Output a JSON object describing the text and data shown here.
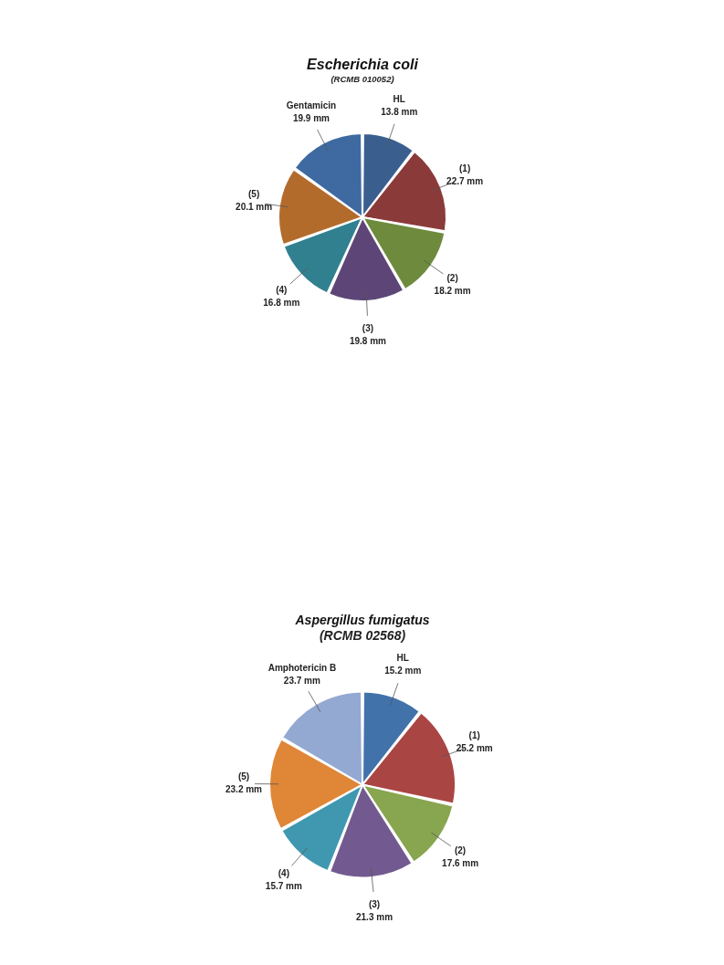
{
  "chart_data": [
    {
      "type": "pie",
      "title": "Escherichia coli",
      "subtitle": "(RCMB 010052)",
      "categories": [
        "HL",
        "(1)",
        "(2)",
        "(3)",
        "(4)",
        "(5)",
        "Gentamicin"
      ],
      "values": [
        13.8,
        22.7,
        18.2,
        19.8,
        16.8,
        20.1,
        19.9
      ],
      "value_labels": [
        "13.8 mm",
        "22.7 mm",
        "18.2 mm",
        "19.8 mm",
        "16.8 mm",
        "20.1 mm",
        "19.9 mm"
      ],
      "colors": [
        "#3a5f8f",
        "#8b3a3a",
        "#6e8b3d",
        "#5d4677",
        "#31808f",
        "#b36b2c",
        "#3e6aa1"
      ]
    },
    {
      "type": "pie",
      "title": "Aspergillus fumigatus",
      "subtitle": "(RCMB 02568)",
      "categories": [
        "HL",
        "(1)",
        "(2)",
        "(3)",
        "(4)",
        "(5)",
        "Amphotericin B"
      ],
      "values": [
        15.2,
        25.2,
        17.6,
        21.3,
        15.7,
        23.2,
        23.7
      ],
      "value_labels": [
        "15.2 mm",
        "25.2 mm",
        "17.6 mm",
        "21.3 mm",
        "15.7 mm",
        "23.2 mm",
        "23.7 mm"
      ],
      "colors": [
        "#4272aa",
        "#a94543",
        "#88a54f",
        "#725a90",
        "#3f98af",
        "#df8637",
        "#93a9d1"
      ]
    }
  ]
}
